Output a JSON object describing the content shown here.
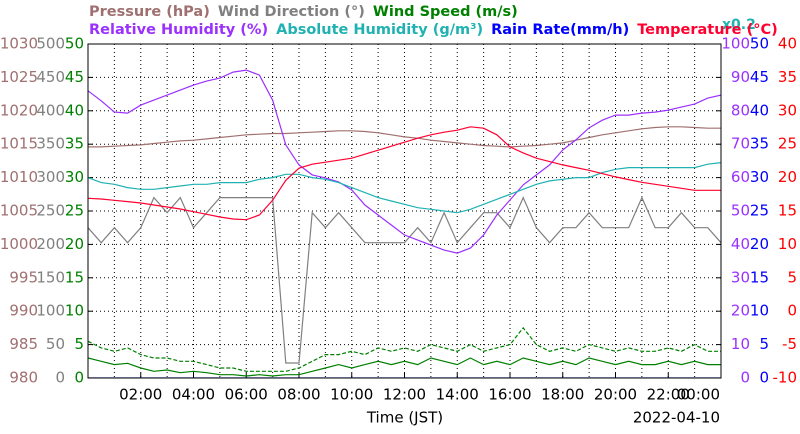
{
  "chart_data": {
    "type": "line",
    "xlabel": "Time (JST)",
    "date": "2022-04-10",
    "xlim": [
      0,
      24
    ],
    "xticks": [
      {
        "value": 2,
        "label": "02:00"
      },
      {
        "value": 4,
        "label": "04:00"
      },
      {
        "value": 6,
        "label": "06:00"
      },
      {
        "value": 8,
        "label": "08:00"
      },
      {
        "value": 10,
        "label": "10:00"
      },
      {
        "value": 12,
        "label": "12:00"
      },
      {
        "value": 14,
        "label": "14:00"
      },
      {
        "value": 16,
        "label": "16:00"
      },
      {
        "value": 18,
        "label": "18:00"
      },
      {
        "value": 20,
        "label": "20:00"
      },
      {
        "value": 22,
        "label": "22:00"
      },
      {
        "value": 24,
        "label": "00:00"
      }
    ],
    "x_minor_ticks": [
      1,
      3,
      5,
      7,
      9,
      11,
      13,
      15,
      17,
      19,
      21,
      23
    ],
    "grid": true,
    "axes": [
      {
        "side": "left",
        "color": "#a07070",
        "ylim": [
          980,
          1030
        ],
        "yticks": [
          980,
          985,
          990,
          995,
          1000,
          1005,
          1010,
          1015,
          1020,
          1025,
          1030
        ]
      },
      {
        "side": "left",
        "color": "#808080",
        "ylim": [
          0,
          500
        ],
        "yticks": [
          0,
          50,
          100,
          150,
          200,
          250,
          300,
          350,
          400,
          450,
          500
        ]
      },
      {
        "side": "left",
        "color": "#008000",
        "ylim": [
          0,
          50
        ],
        "yticks": [
          0,
          5,
          10,
          15,
          20,
          25,
          30,
          35,
          40,
          45,
          50
        ]
      },
      {
        "side": "right",
        "color": "#9b30ff",
        "ylim": [
          0,
          100
        ],
        "yticks": [
          0,
          10,
          20,
          30,
          40,
          50,
          60,
          70,
          80,
          90,
          100
        ]
      },
      {
        "side": "right",
        "color": "#0000ff",
        "ylim": [
          0,
          50
        ],
        "yticks": [
          0,
          5,
          10,
          15,
          20,
          25,
          30,
          35,
          40,
          45,
          50
        ]
      },
      {
        "side": "right",
        "color": "#ff0000",
        "ylim": [
          -10,
          40
        ],
        "yticks": [
          -10,
          -5,
          0,
          5,
          10,
          15,
          20,
          25,
          30,
          35,
          40
        ]
      }
    ],
    "x": [
      0,
      0.5,
      1,
      1.5,
      2,
      2.5,
      3,
      3.5,
      4,
      4.5,
      5,
      5.5,
      6,
      6.5,
      7,
      7.5,
      8,
      8.5,
      9,
      9.5,
      10,
      10.5,
      11,
      11.5,
      12,
      12.5,
      13,
      13.5,
      14,
      14.5,
      15,
      15.5,
      16,
      16.5,
      17,
      17.5,
      18,
      18.5,
      19,
      19.5,
      20,
      20.5,
      21,
      21.5,
      22,
      22.5,
      23,
      23.5,
      24
    ],
    "series": [
      {
        "name": "Pressure (hPa)",
        "color": "#a07070",
        "axis": 0,
        "values": [
          1014.6,
          1014.6,
          1014.7,
          1014.8,
          1014.9,
          1015.1,
          1015.3,
          1015.5,
          1015.6,
          1015.8,
          1016.0,
          1016.2,
          1016.4,
          1016.5,
          1016.6,
          1016.6,
          1016.7,
          1016.8,
          1016.9,
          1017.0,
          1017.0,
          1016.9,
          1016.7,
          1016.4,
          1016.1,
          1015.9,
          1015.6,
          1015.4,
          1015.2,
          1015.0,
          1014.8,
          1014.7,
          1014.6,
          1014.7,
          1014.8,
          1015.0,
          1015.2,
          1015.6,
          1016.0,
          1016.4,
          1016.7,
          1017.0,
          1017.3,
          1017.5,
          1017.6,
          1017.6,
          1017.5,
          1017.4,
          1017.4
        ]
      },
      {
        "name": "Wind Direction (°)",
        "color": "#808080",
        "axis": 1,
        "values": [
          225,
          202.5,
          225,
          202.5,
          225,
          270,
          247.5,
          270,
          225,
          247.5,
          270,
          270,
          270,
          270,
          270,
          22.5,
          22.5,
          247.5,
          225,
          247.5,
          225,
          202.5,
          202.5,
          202.5,
          202.5,
          225,
          202.5,
          247.5,
          202.5,
          225,
          247.5,
          247.5,
          225,
          270,
          225,
          202.5,
          225,
          225,
          247.5,
          225,
          225,
          225,
          270,
          225,
          225,
          247.5,
          225,
          225,
          202.5
        ]
      },
      {
        "name": "Wind Speed (m/s)",
        "color": "#008000",
        "axis": 2,
        "values": [
          3.0,
          2.5,
          2.0,
          2.2,
          1.5,
          1.0,
          1.2,
          0.8,
          1.0,
          0.8,
          0.5,
          0.5,
          0.3,
          0.5,
          0.3,
          0.5,
          0.5,
          1.0,
          1.5,
          2.0,
          1.5,
          2.0,
          2.5,
          2.0,
          2.5,
          2.0,
          3.0,
          2.5,
          2.0,
          3.0,
          2.0,
          2.5,
          2.0,
          3.0,
          2.5,
          2.0,
          2.5,
          2.0,
          3.0,
          2.5,
          2.0,
          2.5,
          2.0,
          2.0,
          2.5,
          2.0,
          2.5,
          2.0,
          2.0
        ]
      },
      {
        "color": "#008000",
        "axis": 2,
        "dash": true,
        "values": [
          5.5,
          4.5,
          4.0,
          4.5,
          3.5,
          3.0,
          3.0,
          2.5,
          2.5,
          2.0,
          1.5,
          1.5,
          1.0,
          1.0,
          1.0,
          1.0,
          1.5,
          2.5,
          3.5,
          3.5,
          4.0,
          3.5,
          4.5,
          4.0,
          4.5,
          4.0,
          5.0,
          4.5,
          4.0,
          5.0,
          4.0,
          4.5,
          5.0,
          7.5,
          5.0,
          4.0,
          4.5,
          4.0,
          5.0,
          4.5,
          4.0,
          4.5,
          4.0,
          4.0,
          4.5,
          4.0,
          5.0,
          4.0,
          4.0
        ]
      },
      {
        "name": "Relative Humidity (%)",
        "color": "#9b30ff",
        "axis": 3,
        "values": [
          86.0,
          83.0,
          79.6,
          79.3,
          81.7,
          83.2,
          84.7,
          86.2,
          87.7,
          88.9,
          89.8,
          91.6,
          92.2,
          90.7,
          83.2,
          69.8,
          63.8,
          60.8,
          59.9,
          58.7,
          56.3,
          51.8,
          48.8,
          45.8,
          42.8,
          41.3,
          39.8,
          38.3,
          37.4,
          38.9,
          42.8,
          48.8,
          53.3,
          57.8,
          60.8,
          63.8,
          68.3,
          71.3,
          74.9,
          77.2,
          78.7,
          78.7,
          79.3,
          79.6,
          80.2,
          81.1,
          82.0,
          83.8,
          84.7
        ]
      },
      {
        "name": "Absolute Humidity (g/m³)",
        "color": "#20b2b2",
        "axis": 3,
        "scale": {
          "value": 0.2,
          "label": "x0.2"
        },
        "values": [
          12.0,
          11.7,
          11.6,
          11.4,
          11.3,
          11.3,
          11.4,
          11.5,
          11.6,
          11.6,
          11.7,
          11.7,
          11.7,
          11.9,
          12.0,
          12.2,
          12.2,
          12.0,
          11.9,
          11.7,
          11.4,
          11.1,
          10.8,
          10.6,
          10.4,
          10.2,
          10.1,
          10.0,
          9.9,
          10.1,
          10.4,
          10.7,
          11.0,
          11.3,
          11.6,
          11.8,
          11.9,
          12.0,
          12.0,
          12.3,
          12.5,
          12.6,
          12.6,
          12.6,
          12.6,
          12.6,
          12.6,
          12.8,
          12.9
        ]
      },
      {
        "name": "Rain Rate(mm/h)",
        "color": "#0000ff",
        "axis": 4,
        "values": [
          0,
          0,
          0,
          0,
          0,
          0,
          0,
          0,
          0,
          0,
          0,
          0,
          0,
          0,
          0,
          0,
          0,
          0,
          0,
          0,
          0,
          0,
          0,
          0,
          0,
          0,
          0,
          0,
          0,
          0,
          0,
          0,
          0,
          0,
          0,
          0,
          0,
          0,
          0,
          0,
          0,
          0,
          0,
          0,
          0,
          0,
          0,
          0,
          0
        ]
      },
      {
        "name": "Temperature (°C)",
        "color": "#ff0030",
        "axis": 5,
        "values": [
          16.9,
          16.8,
          16.6,
          16.4,
          16.2,
          15.9,
          15.6,
          15.3,
          14.9,
          14.5,
          14.1,
          13.8,
          13.7,
          14.4,
          16.6,
          19.6,
          21.4,
          22.0,
          22.3,
          22.6,
          22.9,
          23.5,
          24.1,
          24.7,
          25.3,
          25.9,
          26.4,
          26.8,
          27.1,
          27.6,
          27.4,
          26.4,
          24.6,
          23.7,
          22.9,
          22.4,
          21.9,
          21.5,
          21.1,
          20.6,
          20.1,
          19.7,
          19.3,
          19.0,
          18.7,
          18.4,
          18.1,
          18.1,
          18.1
        ]
      }
    ]
  }
}
